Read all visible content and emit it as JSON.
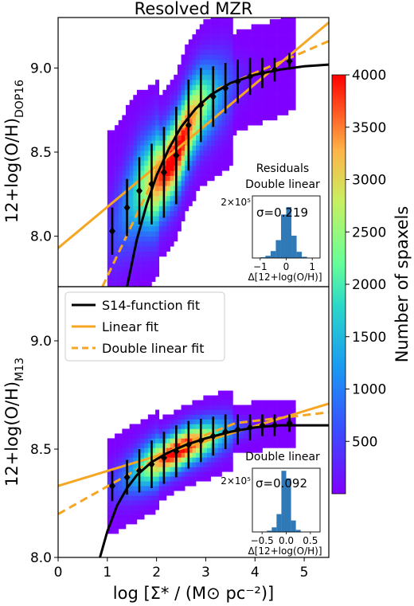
{
  "title": "Resolved MZR",
  "xlabel": "log [Σ* / (M⊙ pc⁻²)]",
  "xticks": [
    "0",
    "1",
    "2",
    "3",
    "4",
    "5"
  ],
  "colorbar": {
    "label": "Number of spaxels",
    "range": [
      0,
      4000
    ],
    "ticks": [
      "500",
      "1000",
      "1500",
      "2000",
      "2500",
      "3000",
      "3500",
      "4000"
    ],
    "colormap": "rainbow"
  },
  "legend": [
    {
      "label": "S14-function fit",
      "color": "#000000",
      "style": "solid"
    },
    {
      "label": "Linear fit",
      "color": "#f5a623",
      "style": "solid"
    },
    {
      "label": "Double linear fit",
      "color": "#f5a623",
      "style": "dashed"
    }
  ],
  "colors": {
    "s14": "#000000",
    "linear": "#f5a623",
    "hist": "#2f79b7"
  },
  "chart_data": [
    {
      "type": "heatmap",
      "panel": "top",
      "ylabel": "12+log(O/H)DOP16",
      "ylabel_main": "12+log(O/H)",
      "ylabel_sub": "DOP16",
      "xlim": [
        0,
        5.5
      ],
      "ylim": [
        7.7,
        9.3
      ],
      "yticks": [
        "8.0",
        "8.5",
        "9.0"
      ],
      "binned_medians": {
        "x": [
          1.1,
          1.4,
          1.65,
          1.9,
          2.15,
          2.4,
          2.65,
          2.9,
          3.15,
          3.4,
          3.65,
          3.9,
          4.15,
          4.4,
          4.7
        ],
        "y": [
          8.03,
          8.17,
          8.27,
          8.31,
          8.38,
          8.48,
          8.66,
          8.78,
          8.83,
          8.88,
          8.92,
          8.95,
          8.97,
          8.99,
          9.04
        ],
        "err": [
          0.14,
          0.17,
          0.2,
          0.24,
          0.27,
          0.29,
          0.27,
          0.22,
          0.18,
          0.15,
          0.13,
          0.11,
          0.09,
          0.07,
          0.05
        ]
      },
      "s14_fit": {
        "x": [
          1.4,
          1.6,
          1.8,
          2.0,
          2.25,
          2.5,
          2.8,
          3.1,
          3.5,
          4.0,
          4.5,
          5.0,
          5.5
        ],
        "y": [
          7.7,
          7.98,
          8.19,
          8.36,
          8.52,
          8.65,
          8.76,
          8.84,
          8.91,
          8.96,
          8.99,
          9.01,
          9.02
        ]
      },
      "linear_fit": {
        "x": [
          0,
          5.5
        ],
        "y": [
          7.93,
          9.27
        ]
      },
      "double_linear_fit": {
        "x": [
          0.9,
          2.3,
          3.2,
          5.5
        ],
        "y": [
          7.7,
          8.56,
          8.87,
          9.16
        ]
      },
      "inset": {
        "title_lines": [
          "Residuals",
          "Double linear"
        ],
        "sigma_label": "σ=0.219",
        "ymax_label": "2×10⁵",
        "xticks": [
          "−1",
          "0",
          "1"
        ],
        "xlabel": "Δ[12+log(O/H)]",
        "xlim": [
          -1.3,
          1.3
        ],
        "bin_centers": [
          -0.9,
          -0.7,
          -0.5,
          -0.3,
          -0.1,
          0.1,
          0.3,
          0.5,
          0.7
        ],
        "counts": [
          3000,
          9000,
          28000,
          72000,
          175000,
          205000,
          90000,
          25000,
          5000
        ]
      }
    },
    {
      "type": "heatmap",
      "panel": "bottom",
      "ylabel": "12+log(O/H)M13",
      "ylabel_main": "12+log(O/H)",
      "ylabel_sub": "M13",
      "xlim": [
        0,
        5.5
      ],
      "ylim": [
        8.0,
        9.25
      ],
      "yticks": [
        "8.0",
        "8.5",
        "9.0"
      ],
      "binned_medians": {
        "x": [
          1.1,
          1.4,
          1.65,
          1.9,
          2.15,
          2.4,
          2.65,
          2.9,
          3.15,
          3.4,
          3.65,
          3.9,
          4.15,
          4.4,
          4.7
        ],
        "y": [
          8.33,
          8.37,
          8.4,
          8.43,
          8.46,
          8.49,
          8.52,
          8.54,
          8.56,
          8.58,
          8.59,
          8.6,
          8.61,
          8.61,
          8.62
        ],
        "err": [
          0.07,
          0.08,
          0.1,
          0.11,
          0.12,
          0.12,
          0.11,
          0.1,
          0.09,
          0.08,
          0.07,
          0.06,
          0.05,
          0.05,
          0.04
        ]
      },
      "s14_fit": {
        "x": [
          0.85,
          1.0,
          1.2,
          1.4,
          1.6,
          1.9,
          2.2,
          2.6,
          3.0,
          3.5,
          4.0,
          4.5,
          5.0,
          5.5
        ],
        "y": [
          8.0,
          8.12,
          8.24,
          8.32,
          8.38,
          8.44,
          8.48,
          8.52,
          8.55,
          8.58,
          8.6,
          8.61,
          8.61,
          8.61
        ]
      },
      "linear_fit": {
        "x": [
          0,
          5.5
        ],
        "y": [
          8.33,
          8.71
        ]
      },
      "double_linear_fit": {
        "x": [
          0,
          2.5,
          3.6,
          5.5
        ],
        "y": [
          8.2,
          8.52,
          8.62,
          8.67
        ]
      },
      "inset": {
        "title_lines": [
          "Double linear"
        ],
        "sigma_label": "σ=0.092",
        "ymax_label": "2×10⁵",
        "xticks": [
          "−0.5",
          "0.0",
          "0.5"
        ],
        "xlabel": "Δ[12+log(O/H)]",
        "xlim": [
          -0.7,
          0.7
        ],
        "bin_centers": [
          -0.35,
          -0.25,
          -0.15,
          -0.05,
          0.05,
          0.15,
          0.25
        ],
        "counts": [
          5000,
          18000,
          70000,
          240000,
          210000,
          45000,
          8000
        ]
      }
    }
  ]
}
